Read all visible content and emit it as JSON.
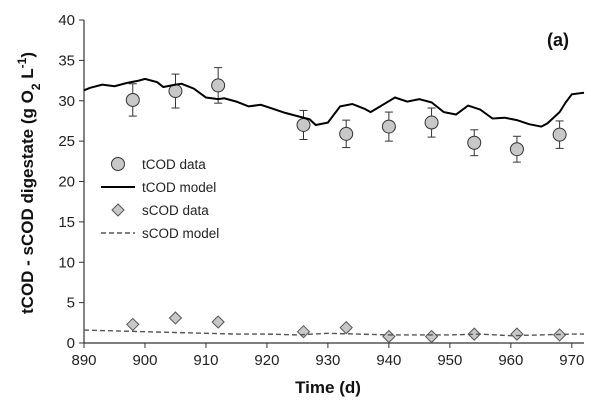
{
  "chart_data": {
    "type": "line",
    "panel_label": "(a)",
    "xlabel": "Time (d)",
    "ylabel": {
      "parts": [
        {
          "text": "tCOD - sCOD digestate (g O",
          "sub": false
        },
        {
          "text": "2",
          "sub": true
        },
        {
          "text": " L",
          "sub": false
        },
        {
          "text": "-1",
          "sup": true
        },
        {
          "text": ")",
          "sub": false
        }
      ]
    },
    "xlim": [
      890,
      972
    ],
    "ylim": [
      0,
      40
    ],
    "xticks": [
      890,
      900,
      910,
      920,
      930,
      940,
      950,
      960,
      970
    ],
    "yticks": [
      0,
      5,
      10,
      15,
      20,
      25,
      30,
      35,
      40
    ],
    "grid": false,
    "legend_position": "center-left",
    "series": [
      {
        "name": "tCOD data",
        "kind": "points-errorbars",
        "marker": "circle",
        "fill": "#c8c8c8",
        "stroke": "#333333",
        "x": [
          898,
          905,
          912,
          926,
          933,
          940,
          947,
          954,
          961,
          968
        ],
        "y": [
          30.1,
          31.2,
          31.9,
          27.0,
          25.9,
          26.8,
          27.3,
          24.8,
          24.0,
          25.8
        ],
        "err": [
          2.0,
          2.1,
          2.2,
          1.8,
          1.7,
          1.8,
          1.8,
          1.6,
          1.6,
          1.7
        ]
      },
      {
        "name": "tCOD model",
        "kind": "line",
        "stroke": "#000000",
        "dash": "",
        "x": [
          890,
          891,
          893,
          895,
          897,
          899,
          900,
          902,
          903,
          905,
          906,
          908,
          910,
          912,
          913,
          915,
          917,
          919,
          921,
          923,
          925,
          927,
          928,
          930,
          932,
          934,
          936,
          937,
          939,
          941,
          943,
          945,
          947,
          949,
          951,
          953,
          955,
          957,
          959,
          961,
          963,
          965,
          966,
          968,
          969,
          970,
          972
        ],
        "y": [
          31.3,
          31.6,
          32.0,
          31.8,
          32.2,
          32.5,
          32.7,
          32.3,
          31.7,
          32.0,
          32.1,
          31.5,
          30.4,
          30.2,
          30.3,
          29.9,
          29.3,
          29.5,
          29.0,
          28.5,
          28.1,
          27.7,
          27.0,
          27.3,
          29.3,
          29.6,
          29.0,
          28.6,
          29.5,
          30.4,
          29.9,
          30.2,
          29.8,
          28.6,
          28.3,
          29.4,
          28.9,
          27.8,
          27.9,
          27.6,
          27.1,
          26.8,
          27.2,
          28.6,
          29.8,
          30.8,
          31.0
        ]
      },
      {
        "name": "sCOD data",
        "kind": "points",
        "marker": "diamond",
        "fill": "#c8c8c8",
        "stroke": "#555555",
        "x": [
          898,
          905,
          912,
          926,
          933,
          940,
          947,
          954,
          961,
          968
        ],
        "y": [
          2.3,
          3.1,
          2.6,
          1.4,
          1.9,
          0.8,
          0.8,
          1.1,
          1.1,
          1.0
        ]
      },
      {
        "name": "sCOD model",
        "kind": "line",
        "stroke": "#555555",
        "dash": "5,3",
        "x": [
          890,
          895,
          900,
          905,
          910,
          915,
          920,
          925,
          930,
          935,
          940,
          945,
          950,
          955,
          960,
          965,
          970,
          972
        ],
        "y": [
          1.6,
          1.5,
          1.4,
          1.3,
          1.2,
          1.1,
          1.1,
          1.0,
          1.2,
          1.1,
          1.0,
          1.0,
          1.0,
          1.1,
          0.9,
          1.0,
          1.1,
          1.1
        ]
      }
    ]
  }
}
